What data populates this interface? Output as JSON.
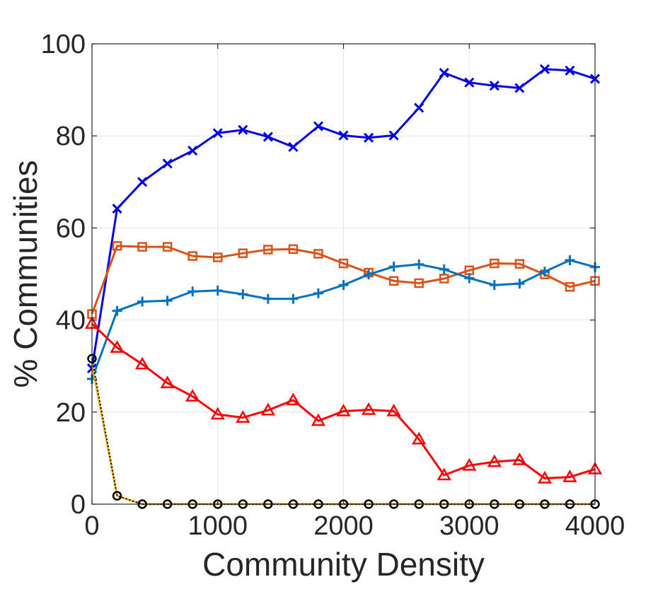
{
  "chart_data": {
    "type": "line",
    "xlabel": "Community Density",
    "ylabel": "% Communities",
    "xlim": [
      0,
      4000
    ],
    "ylim": [
      0,
      100
    ],
    "xticks": [
      0,
      1000,
      2000,
      3000,
      4000
    ],
    "yticks": [
      0,
      20,
      40,
      60,
      80,
      100
    ],
    "grid": true,
    "x": [
      0,
      200,
      400,
      600,
      800,
      1000,
      1200,
      1400,
      1600,
      1800,
      2000,
      2200,
      2400,
      2600,
      2800,
      3000,
      3200,
      3400,
      3600,
      3800,
      4000
    ],
    "series": [
      {
        "color": "#0000e6",
        "marker": "x",
        "line": "solid",
        "values": [
          29.5,
          64.2,
          70.0,
          74.0,
          76.8,
          80.6,
          81.3,
          79.8,
          77.6,
          82.1,
          80.1,
          79.6,
          80.1,
          86.1,
          93.7,
          91.6,
          90.9,
          90.4,
          94.5,
          94.2,
          92.4
        ]
      },
      {
        "color": "#d95319",
        "marker": "square",
        "line": "solid",
        "values": [
          41.3,
          56.1,
          55.9,
          55.9,
          53.9,
          53.6,
          54.5,
          55.3,
          55.4,
          54.4,
          52.3,
          50.3,
          48.5,
          48.0,
          49.0,
          50.8,
          52.3,
          52.2,
          49.9,
          47.2,
          48.5
        ]
      },
      {
        "color": "#0072bd",
        "marker": "plus",
        "line": "solid",
        "values": [
          27.2,
          42.0,
          44.0,
          44.2,
          46.2,
          46.4,
          45.6,
          44.6,
          44.6,
          45.8,
          47.6,
          49.9,
          51.6,
          52.1,
          51.0,
          49.1,
          47.6,
          47.9,
          50.5,
          53.0,
          51.5
        ]
      },
      {
        "color": "#ff0000",
        "marker": "triangle",
        "line": "solid",
        "values": [
          39.2,
          34.0,
          30.4,
          26.3,
          23.4,
          19.5,
          18.8,
          20.4,
          22.6,
          18.1,
          20.2,
          20.5,
          20.2,
          14.1,
          6.3,
          8.4,
          9.2,
          9.6,
          5.6,
          5.9,
          7.6
        ]
      },
      {
        "color": "#edb120",
        "marker": "none",
        "line": "solid",
        "values": [
          30.5,
          1.8,
          0,
          0,
          0,
          0,
          0,
          0,
          0,
          0,
          0,
          0,
          0,
          0,
          0,
          0,
          0,
          0,
          0,
          0,
          0
        ]
      },
      {
        "color": "#000000",
        "marker": "circle",
        "line": "dotted",
        "values": [
          31.6,
          1.8,
          0,
          0,
          0,
          0,
          0,
          0,
          0,
          0,
          0,
          0,
          0,
          0,
          0,
          0,
          0,
          0,
          0,
          0,
          0
        ]
      }
    ]
  }
}
